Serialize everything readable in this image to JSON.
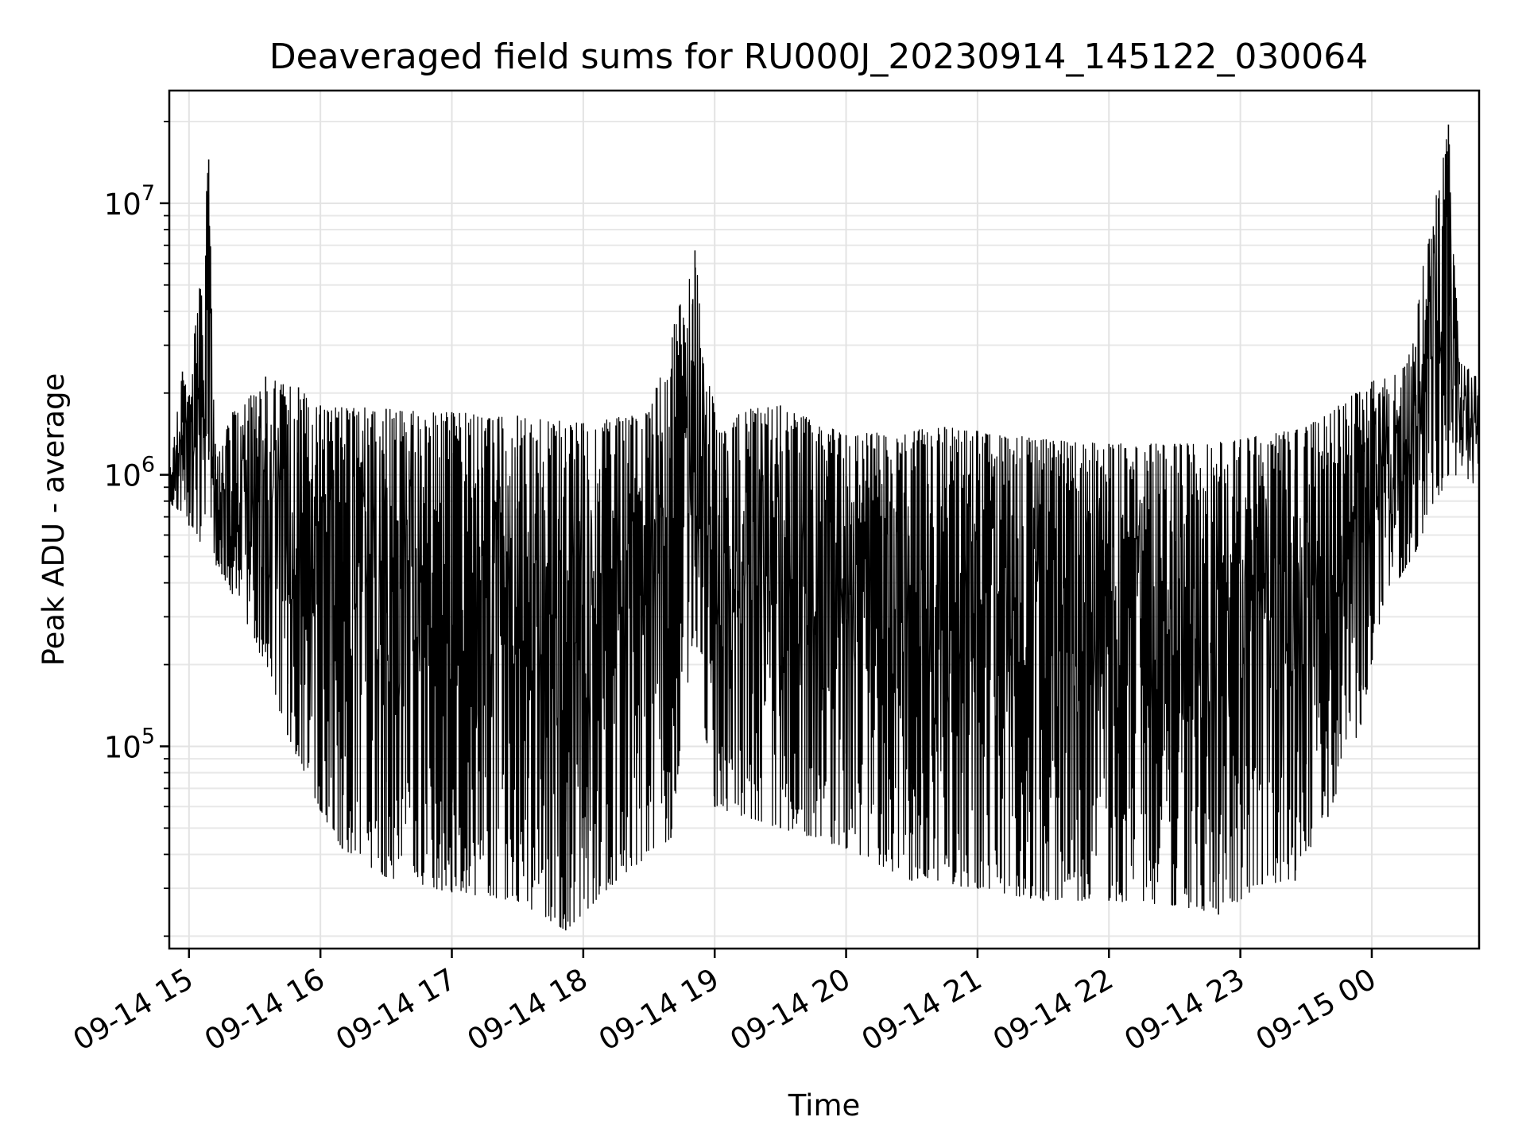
{
  "chart_data": {
    "type": "line",
    "title": "Deaveraged field sums for RU000J_20230914_145122_030064",
    "xlabel": "Time",
    "ylabel": "Peak ADU - average",
    "yscale": "log",
    "ylim": [
      18000,
      26000000
    ],
    "xlim": [
      "2023-09-14 14:51",
      "2023-09-15 00:49"
    ],
    "grid": true,
    "line_color": "#000000",
    "x_ticks": [
      {
        "t": "2023-09-14 15:00",
        "label": "09-14 15"
      },
      {
        "t": "2023-09-14 16:00",
        "label": "09-14 16"
      },
      {
        "t": "2023-09-14 17:00",
        "label": "09-14 17"
      },
      {
        "t": "2023-09-14 18:00",
        "label": "09-14 18"
      },
      {
        "t": "2023-09-14 19:00",
        "label": "09-14 19"
      },
      {
        "t": "2023-09-14 20:00",
        "label": "09-14 20"
      },
      {
        "t": "2023-09-14 21:00",
        "label": "09-14 21"
      },
      {
        "t": "2023-09-14 22:00",
        "label": "09-14 22"
      },
      {
        "t": "2023-09-14 23:00",
        "label": "09-14 23"
      },
      {
        "t": "2023-09-15 00:00",
        "label": "09-15 00"
      }
    ],
    "y_ticks": [
      {
        "value": 100000,
        "base": "10",
        "exp": "5"
      },
      {
        "value": 1000000,
        "base": "10",
        "exp": "6"
      },
      {
        "value": 10000000,
        "base": "10",
        "exp": "7"
      }
    ],
    "series": [
      {
        "upper_envelope": [
          [
            "2023-09-14 14:51",
            1050000
          ],
          [
            "2023-09-14 14:57",
            2400000
          ],
          [
            "2023-09-14 15:00",
            1900000
          ],
          [
            "2023-09-14 15:09",
            14500000
          ],
          [
            "2023-09-14 15:12",
            1300000
          ],
          [
            "2023-09-14 15:20",
            1700000
          ],
          [
            "2023-09-14 15:35",
            2300000
          ],
          [
            "2023-09-14 15:50",
            2100000
          ],
          [
            "2023-09-14 16:00",
            1800000
          ],
          [
            "2023-09-14 16:30",
            1750000
          ],
          [
            "2023-09-14 17:00",
            1700000
          ],
          [
            "2023-09-14 17:30",
            1650000
          ],
          [
            "2023-09-14 18:00",
            1550000
          ],
          [
            "2023-09-14 18:30",
            1700000
          ],
          [
            "2023-09-14 18:44",
            4200000
          ],
          [
            "2023-09-14 18:51",
            6700000
          ],
          [
            "2023-09-14 19:00",
            1700000
          ],
          [
            "2023-09-14 19:30",
            1800000
          ],
          [
            "2023-09-14 20:00",
            1400000
          ],
          [
            "2023-09-14 20:45",
            1500000
          ],
          [
            "2023-09-14 21:00",
            1450000
          ],
          [
            "2023-09-14 21:30",
            1350000
          ],
          [
            "2023-09-14 22:00",
            1300000
          ],
          [
            "2023-09-14 22:30",
            1300000
          ],
          [
            "2023-09-14 23:00",
            1350000
          ],
          [
            "2023-09-14 23:30",
            1500000
          ],
          [
            "2023-09-15 00:00",
            2200000
          ],
          [
            "2023-09-15 00:15",
            2500000
          ],
          [
            "2023-09-15 00:35",
            19500000
          ],
          [
            "2023-09-15 00:40",
            2600000
          ],
          [
            "2023-09-15 00:49",
            2300000
          ]
        ],
        "lower_envelope": [
          [
            "2023-09-14 14:51",
            800000
          ],
          [
            "2023-09-14 15:00",
            650000
          ],
          [
            "2023-09-14 15:15",
            430000
          ],
          [
            "2023-09-14 15:30",
            250000
          ],
          [
            "2023-09-14 15:45",
            110000
          ],
          [
            "2023-09-14 16:00",
            58000
          ],
          [
            "2023-09-14 16:10",
            42000
          ],
          [
            "2023-09-14 16:30",
            33000
          ],
          [
            "2023-09-14 17:00",
            29000
          ],
          [
            "2023-09-14 17:30",
            27000
          ],
          [
            "2023-09-14 17:52",
            21000
          ],
          [
            "2023-09-14 18:15",
            32000
          ],
          [
            "2023-09-14 18:40",
            46000
          ],
          [
            "2023-09-14 18:50",
            250000
          ],
          [
            "2023-09-14 19:00",
            60000
          ],
          [
            "2023-09-14 19:30",
            50000
          ],
          [
            "2023-09-14 20:00",
            42000
          ],
          [
            "2023-09-14 20:30",
            32000
          ],
          [
            "2023-09-14 21:00",
            30000
          ],
          [
            "2023-09-14 21:30",
            27000
          ],
          [
            "2023-09-14 22:00",
            27000
          ],
          [
            "2023-09-14 22:30",
            26000
          ],
          [
            "2023-09-14 22:50",
            24000
          ],
          [
            "2023-09-14 23:10",
            31000
          ],
          [
            "2023-09-14 23:25",
            32000
          ],
          [
            "2023-09-14 23:40",
            55000
          ],
          [
            "2023-09-14 23:55",
            120000
          ],
          [
            "2023-09-15 00:05",
            330000
          ],
          [
            "2023-09-15 00:20",
            520000
          ],
          [
            "2023-09-15 00:35",
            1000000
          ],
          [
            "2023-09-15 00:49",
            900000
          ]
        ]
      }
    ]
  }
}
